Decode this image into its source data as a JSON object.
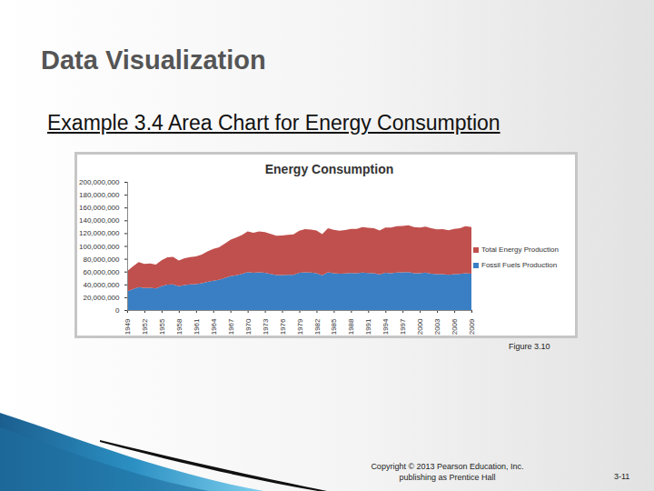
{
  "slide": {
    "title": "Data Visualization",
    "subtitle": "Example 3.4  Area Chart for Energy Consumption",
    "figure_label": "Figure 3.10",
    "copyright": [
      "Copyright © 2013 Pearson Education, Inc.",
      "publishing as Prentice Hall"
    ],
    "page": "3-11"
  },
  "chart_data": {
    "type": "area",
    "title": "Energy Consumption",
    "stacked": true,
    "grid": false,
    "legend": "right",
    "x": [
      1949,
      1950,
      1951,
      1952,
      1953,
      1954,
      1955,
      1956,
      1957,
      1958,
      1959,
      1960,
      1961,
      1962,
      1963,
      1964,
      1965,
      1966,
      1967,
      1968,
      1969,
      1970,
      1971,
      1972,
      1973,
      1974,
      1975,
      1976,
      1977,
      1978,
      1979,
      1980,
      1981,
      1982,
      1983,
      1984,
      1985,
      1986,
      1987,
      1988,
      1989,
      1990,
      1991,
      1992,
      1993,
      1994,
      1995,
      1996,
      1997,
      1998,
      1999,
      2000,
      2001,
      2002,
      2003,
      2004,
      2005,
      2006,
      2007,
      2008,
      2009
    ],
    "series": [
      {
        "name": "Fossil Fuels Production",
        "color": "#3a7fc4",
        "values": [
          29000000,
          32600000,
          35800000,
          34300000,
          34700000,
          33800000,
          37400000,
          39800000,
          40100000,
          37200000,
          39000000,
          39900000,
          40300000,
          41700000,
          44000000,
          45800000,
          47200000,
          50000000,
          52800000,
          54400000,
          56300000,
          59200000,
          58000000,
          58900000,
          58200000,
          56300000,
          54700000,
          54700000,
          55100000,
          55000000,
          58000000,
          59000000,
          58500000,
          57500000,
          54400000,
          58800000,
          57500000,
          56600000,
          57200000,
          57900000,
          57500000,
          58600000,
          57900000,
          57600000,
          55800000,
          58000000,
          57500000,
          58400000,
          58900000,
          59300000,
          57600000,
          57400000,
          58500000,
          56800000,
          56000000,
          55900000,
          55000000,
          55900000,
          56400000,
          57600000,
          56700000
        ]
      },
      {
        "name": "Total Energy Production",
        "color": "#c0504d",
        "values": [
          31700000,
          35500000,
          38900000,
          37600000,
          38100000,
          37300000,
          40100000,
          42500000,
          42900000,
          40100000,
          41700000,
          42800000,
          43500000,
          45000000,
          47600000,
          49700000,
          50700000,
          53700000,
          56800000,
          58600000,
          60800000,
          63500000,
          62700000,
          63900000,
          63600000,
          62400000,
          61400000,
          61600000,
          62100000,
          63100000,
          65900000,
          67200000,
          67000000,
          66600000,
          64100000,
          68800000,
          67700000,
          67200000,
          67700000,
          68800000,
          69000000,
          70700000,
          70400000,
          69900000,
          68300000,
          70700000,
          71200000,
          72500000,
          72400000,
          72900000,
          71700000,
          71300000,
          71700000,
          70700000,
          69900000,
          70200000,
          69400000,
          70700000,
          71400000,
          73300000,
          72700000
        ]
      }
    ],
    "xlim": [
      1949,
      2009
    ],
    "xticks": [
      1949,
      1952,
      1955,
      1958,
      1961,
      1964,
      1967,
      1970,
      1973,
      1976,
      1979,
      1982,
      1985,
      1988,
      1991,
      1994,
      1997,
      2000,
      2003,
      2006,
      2009
    ],
    "ylim": [
      0,
      200000000
    ],
    "yticks": [
      0,
      {
        "value": 20000000,
        "label": "20,000,000"
      },
      {
        "value": 40000000,
        "label": "40,000,000"
      },
      {
        "value": 60000000,
        "label": "60,000,000"
      },
      {
        "value": 80000000,
        "label": "80,000,000"
      },
      {
        "value": 100000000,
        "label": "100,000,000"
      },
      {
        "value": 120000000,
        "label": "120,000,000"
      },
      {
        "value": 140000000,
        "label": "140,000,000"
      },
      {
        "value": 160000000,
        "label": "160,000,000"
      },
      {
        "value": 180000000,
        "label": "180,000,000"
      },
      {
        "value": 200000000,
        "label": "200,000,000"
      }
    ]
  }
}
